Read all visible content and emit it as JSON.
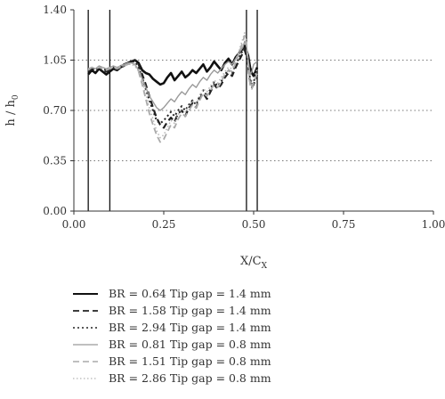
{
  "chart_data": {
    "type": "line",
    "xlabel": "X/C",
    "xlabel_sub": "X",
    "ylabel": "h / h",
    "ylabel_sub": "0",
    "xlim": [
      0,
      1
    ],
    "ylim": [
      0,
      1.4
    ],
    "xticks": [
      0.0,
      0.25,
      0.5,
      0.75,
      1.0
    ],
    "xtick_labels": [
      "0.00",
      "0.25",
      "0.50",
      "0.75",
      "1.00"
    ],
    "yticks": [
      0.0,
      0.35,
      0.7,
      1.05,
      1.4
    ],
    "ytick_labels": [
      "0.00",
      "0.35",
      "0.70",
      "1.05",
      "1.40"
    ],
    "horizontal_dotted_grid": [
      0.35,
      0.7,
      1.05
    ],
    "vertical_lines": [
      0.04,
      0.1,
      0.48,
      0.51
    ],
    "legend_position": "below",
    "series": [
      {
        "name": "BR = 0.64 Tip gap = 1.4 mm",
        "color": "#111111",
        "dash": "solid",
        "width": 2.6,
        "x": [
          0.04,
          0.05,
          0.06,
          0.07,
          0.08,
          0.09,
          0.1,
          0.11,
          0.12,
          0.13,
          0.14,
          0.15,
          0.16,
          0.17,
          0.18,
          0.19,
          0.2,
          0.21,
          0.22,
          0.23,
          0.24,
          0.25,
          0.26,
          0.27,
          0.28,
          0.29,
          0.3,
          0.31,
          0.32,
          0.33,
          0.34,
          0.35,
          0.36,
          0.37,
          0.38,
          0.39,
          0.4,
          0.41,
          0.42,
          0.43,
          0.44,
          0.45,
          0.46,
          0.47,
          0.475,
          0.48,
          0.485,
          0.49,
          0.495,
          0.5,
          0.51
        ],
        "y": [
          0.95,
          0.98,
          0.96,
          0.99,
          0.97,
          0.95,
          0.97,
          0.99,
          0.98,
          1.0,
          1.02,
          1.03,
          1.04,
          1.05,
          1.03,
          0.98,
          0.96,
          0.95,
          0.92,
          0.9,
          0.88,
          0.89,
          0.93,
          0.96,
          0.91,
          0.94,
          0.97,
          0.93,
          0.95,
          0.98,
          0.96,
          0.99,
          1.02,
          0.97,
          1.0,
          1.04,
          1.01,
          0.98,
          1.03,
          1.06,
          1.02,
          1.07,
          1.1,
          1.13,
          1.15,
          1.12,
          1.08,
          1.0,
          0.96,
          0.94,
          1.0
        ]
      },
      {
        "name": "BR = 1.58 Tip gap = 1.4 mm",
        "color": "#222222",
        "dash": "7,4",
        "width": 2.2,
        "x": [
          0.04,
          0.05,
          0.06,
          0.07,
          0.08,
          0.09,
          0.1,
          0.11,
          0.12,
          0.13,
          0.14,
          0.15,
          0.16,
          0.17,
          0.18,
          0.19,
          0.2,
          0.21,
          0.22,
          0.23,
          0.24,
          0.25,
          0.26,
          0.27,
          0.28,
          0.29,
          0.3,
          0.31,
          0.32,
          0.33,
          0.34,
          0.35,
          0.36,
          0.37,
          0.38,
          0.39,
          0.4,
          0.41,
          0.42,
          0.43,
          0.44,
          0.45,
          0.46,
          0.47,
          0.475,
          0.48,
          0.485,
          0.49,
          0.495,
          0.5,
          0.51
        ],
        "y": [
          0.97,
          0.99,
          0.98,
          1.0,
          0.98,
          0.97,
          0.98,
          0.99,
          0.98,
          1.0,
          1.01,
          1.03,
          1.04,
          1.05,
          1.02,
          0.95,
          0.88,
          0.8,
          0.72,
          0.65,
          0.6,
          0.58,
          0.62,
          0.65,
          0.62,
          0.68,
          0.7,
          0.66,
          0.72,
          0.75,
          0.72,
          0.78,
          0.82,
          0.78,
          0.83,
          0.88,
          0.85,
          0.88,
          0.93,
          0.96,
          0.94,
          1.0,
          1.05,
          1.1,
          1.12,
          1.08,
          1.0,
          0.9,
          0.86,
          0.88,
          0.95
        ]
      },
      {
        "name": "BR = 2.94 Tip gap = 1.4 mm",
        "color": "#222222",
        "dash": "2,3",
        "width": 2.0,
        "x": [
          0.04,
          0.05,
          0.06,
          0.07,
          0.08,
          0.09,
          0.1,
          0.11,
          0.12,
          0.13,
          0.14,
          0.15,
          0.16,
          0.17,
          0.18,
          0.19,
          0.2,
          0.21,
          0.22,
          0.23,
          0.24,
          0.25,
          0.26,
          0.27,
          0.28,
          0.29,
          0.3,
          0.31,
          0.32,
          0.33,
          0.34,
          0.35,
          0.36,
          0.37,
          0.38,
          0.39,
          0.4,
          0.41,
          0.42,
          0.43,
          0.44,
          0.45,
          0.46,
          0.47,
          0.475,
          0.48,
          0.485,
          0.49,
          0.495,
          0.5,
          0.51
        ],
        "y": [
          0.98,
          0.99,
          0.98,
          1.0,
          0.99,
          0.98,
          0.99,
          1.0,
          0.99,
          1.01,
          1.02,
          1.03,
          1.04,
          1.04,
          1.0,
          0.93,
          0.85,
          0.77,
          0.7,
          0.63,
          0.61,
          0.63,
          0.66,
          0.69,
          0.66,
          0.7,
          0.73,
          0.7,
          0.74,
          0.77,
          0.74,
          0.8,
          0.84,
          0.8,
          0.85,
          0.9,
          0.87,
          0.9,
          0.95,
          0.98,
          0.96,
          1.02,
          1.07,
          1.12,
          1.14,
          1.1,
          1.02,
          0.92,
          0.88,
          0.9,
          0.97
        ]
      },
      {
        "name": "BR = 0.81 Tip gap = 0.8 mm",
        "color": "#9a9a9a",
        "dash": "solid",
        "width": 1.4,
        "x": [
          0.04,
          0.05,
          0.06,
          0.07,
          0.08,
          0.09,
          0.1,
          0.11,
          0.12,
          0.13,
          0.14,
          0.15,
          0.16,
          0.17,
          0.18,
          0.19,
          0.2,
          0.21,
          0.22,
          0.23,
          0.24,
          0.25,
          0.26,
          0.27,
          0.28,
          0.29,
          0.3,
          0.31,
          0.32,
          0.33,
          0.34,
          0.35,
          0.36,
          0.37,
          0.38,
          0.39,
          0.4,
          0.41,
          0.42,
          0.43,
          0.44,
          0.45,
          0.46,
          0.47,
          0.475,
          0.48,
          0.485,
          0.49,
          0.495,
          0.5,
          0.51
        ],
        "y": [
          0.99,
          1.0,
          0.99,
          1.01,
          1.0,
          0.99,
          1.0,
          1.01,
          1.0,
          1.01,
          1.02,
          1.03,
          1.03,
          1.02,
          0.98,
          0.92,
          0.86,
          0.8,
          0.76,
          0.72,
          0.7,
          0.72,
          0.75,
          0.78,
          0.76,
          0.8,
          0.83,
          0.81,
          0.85,
          0.88,
          0.86,
          0.9,
          0.93,
          0.91,
          0.95,
          0.98,
          0.96,
          0.99,
          1.02,
          1.04,
          1.02,
          1.06,
          1.1,
          1.14,
          1.18,
          1.15,
          1.05,
          0.95,
          0.97,
          1.02,
          1.04
        ]
      },
      {
        "name": "BR = 1.51 Tip gap = 0.8 mm",
        "color": "#aaaaaa",
        "dash": "7,4",
        "width": 1.8,
        "x": [
          0.04,
          0.05,
          0.06,
          0.07,
          0.08,
          0.09,
          0.1,
          0.11,
          0.12,
          0.13,
          0.14,
          0.15,
          0.16,
          0.17,
          0.18,
          0.19,
          0.2,
          0.21,
          0.22,
          0.23,
          0.24,
          0.25,
          0.26,
          0.27,
          0.28,
          0.29,
          0.3,
          0.31,
          0.32,
          0.33,
          0.34,
          0.35,
          0.36,
          0.37,
          0.38,
          0.39,
          0.4,
          0.41,
          0.42,
          0.43,
          0.44,
          0.45,
          0.46,
          0.47,
          0.475,
          0.48,
          0.485,
          0.49,
          0.495,
          0.5,
          0.51
        ],
        "y": [
          0.98,
          1.0,
          0.99,
          1.0,
          0.99,
          0.98,
          0.99,
          1.0,
          0.99,
          1.0,
          1.01,
          1.02,
          1.03,
          1.02,
          0.97,
          0.88,
          0.78,
          0.68,
          0.6,
          0.53,
          0.48,
          0.5,
          0.55,
          0.6,
          0.58,
          0.64,
          0.68,
          0.66,
          0.7,
          0.74,
          0.72,
          0.77,
          0.82,
          0.8,
          0.84,
          0.88,
          0.86,
          0.9,
          0.95,
          0.98,
          0.97,
          1.03,
          1.1,
          1.18,
          1.22,
          1.16,
          1.02,
          0.88,
          0.85,
          0.89,
          0.96
        ]
      },
      {
        "name": "BR = 2.86 Tip gap = 0.8 mm",
        "color": "#b5b5b5",
        "dash": "1.5,2.5",
        "width": 1.5,
        "x": [
          0.04,
          0.05,
          0.06,
          0.07,
          0.08,
          0.09,
          0.1,
          0.11,
          0.12,
          0.13,
          0.14,
          0.15,
          0.16,
          0.17,
          0.18,
          0.19,
          0.2,
          0.21,
          0.22,
          0.23,
          0.24,
          0.25,
          0.26,
          0.27,
          0.28,
          0.29,
          0.3,
          0.31,
          0.32,
          0.33,
          0.34,
          0.35,
          0.36,
          0.37,
          0.38,
          0.39,
          0.4,
          0.41,
          0.42,
          0.43,
          0.44,
          0.45,
          0.46,
          0.47,
          0.475,
          0.48,
          0.485,
          0.49,
          0.495,
          0.5,
          0.51
        ],
        "y": [
          0.99,
          1.0,
          0.99,
          1.0,
          1.0,
          0.99,
          1.0,
          1.0,
          1.0,
          1.01,
          1.01,
          1.02,
          1.02,
          1.01,
          0.97,
          0.9,
          0.82,
          0.72,
          0.64,
          0.56,
          0.51,
          0.53,
          0.58,
          0.63,
          0.61,
          0.67,
          0.71,
          0.69,
          0.73,
          0.77,
          0.75,
          0.8,
          0.85,
          0.83,
          0.87,
          0.91,
          0.89,
          0.93,
          0.97,
          1.0,
          0.99,
          1.05,
          1.12,
          1.2,
          1.24,
          1.18,
          1.04,
          0.9,
          0.88,
          0.92,
          0.99
        ]
      }
    ]
  }
}
